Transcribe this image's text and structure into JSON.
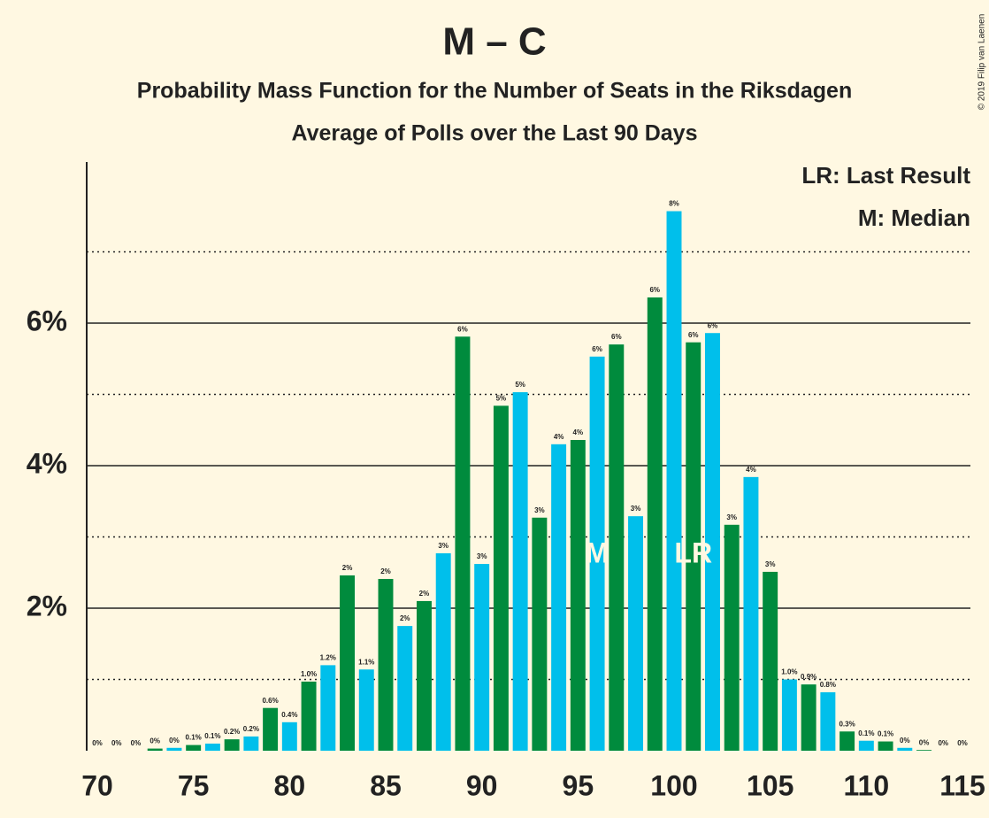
{
  "chart_data": {
    "type": "bar",
    "title": "M – C",
    "subtitle": "Probability Mass Function for the Number of Seats in the Riksdagen",
    "subtitle2": "Average of Polls over the Last 90 Days",
    "copyright": "© 2019 Filip van Laenen",
    "legend": [
      "LR: Last Result",
      "M: Median"
    ],
    "x": [
      70,
      71,
      72,
      73,
      74,
      75,
      76,
      77,
      78,
      79,
      80,
      81,
      82,
      83,
      84,
      85,
      86,
      87,
      88,
      89,
      90,
      91,
      92,
      93,
      94,
      95,
      96,
      97,
      98,
      99,
      100,
      101,
      102,
      103,
      104,
      105,
      106,
      107,
      108,
      109,
      110,
      111,
      112,
      113,
      114,
      115
    ],
    "values": [
      0,
      0,
      0,
      0.03,
      0.04,
      0.08,
      0.1,
      0.16,
      0.2,
      0.6,
      0.4,
      0.97,
      1.2,
      2.46,
      1.14,
      2.41,
      1.75,
      2.1,
      2.77,
      5.81,
      2.62,
      4.84,
      5.03,
      3.27,
      4.3,
      4.36,
      5.53,
      5.7,
      3.29,
      6.36,
      7.57,
      5.73,
      5.86,
      3.17,
      3.84,
      2.51,
      1.0,
      0.93,
      0.82,
      0.27,
      0.14,
      0.13,
      0.04,
      0.01,
      0,
      0
    ],
    "value_labels": [
      "0%",
      "0%",
      "0%",
      "0%",
      "0%",
      "0.1%",
      "0.1%",
      "0.2%",
      "0.2%",
      "0.6%",
      "0.4%",
      "1.0%",
      "1.2%",
      "2%",
      "1.1%",
      "2%",
      "2%",
      "2%",
      "3%",
      "6%",
      "3%",
      "5%",
      "5%",
      "3%",
      "4%",
      "4%",
      "6%",
      "6%",
      "3%",
      "6%",
      "8%",
      "6%",
      "6%",
      "3%",
      "4%",
      "3%",
      "1.0%",
      "0.9%",
      "0.8%",
      "0.3%",
      "0.1%",
      "0.1%",
      "0%",
      "0%",
      "0%",
      "0%"
    ],
    "colors": [
      "#00bfeb",
      "#008b3d"
    ],
    "markers": [
      {
        "label": "M",
        "x": 96
      },
      {
        "label": "LR",
        "x": 101
      }
    ],
    "xlim": [
      70,
      115
    ],
    "xticks": [
      70,
      75,
      80,
      85,
      90,
      95,
      100,
      105,
      110,
      115
    ],
    "ylim": [
      0,
      8.26
    ],
    "yticks": [
      {
        "value": 2,
        "label": "2%"
      },
      {
        "value": 4,
        "label": "4%"
      },
      {
        "value": 6,
        "label": "6%"
      }
    ],
    "minor_yticks": [
      1,
      3,
      5,
      7
    ]
  }
}
